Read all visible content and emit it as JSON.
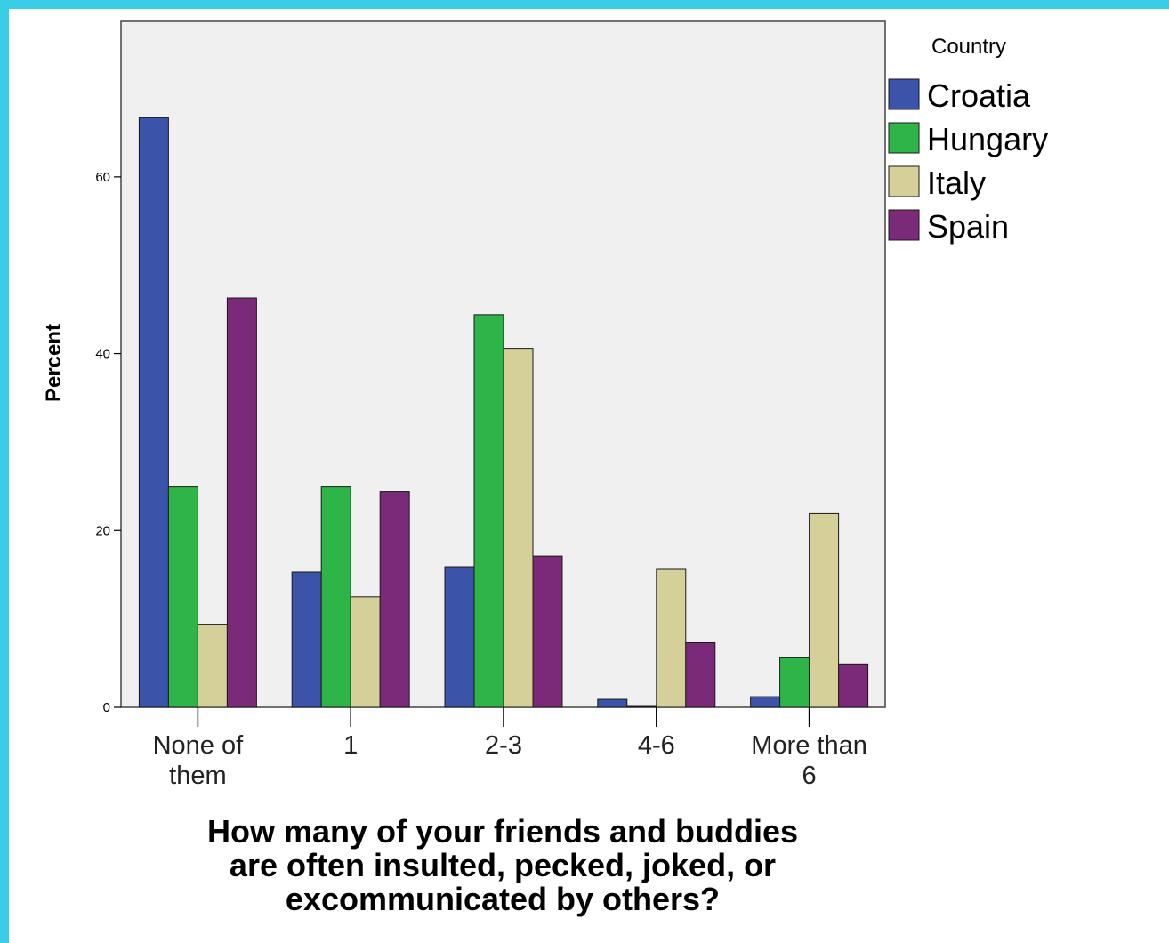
{
  "chart_data": {
    "type": "bar",
    "categories": [
      [
        "None of",
        "them"
      ],
      [
        "1"
      ],
      [
        "2-3"
      ],
      [
        "4-6"
      ],
      [
        "More than",
        "6"
      ]
    ],
    "series": [
      {
        "name": "Croatia",
        "color": "#3b53a8",
        "values": [
          66.7,
          15.3,
          15.9,
          0.9,
          1.2
        ]
      },
      {
        "name": "Hungary",
        "color": "#2eb547",
        "values": [
          25.0,
          25.0,
          44.4,
          0.1,
          5.6
        ]
      },
      {
        "name": "Italy",
        "color": "#d5d09a",
        "values": [
          9.4,
          12.5,
          40.6,
          15.6,
          21.9
        ]
      },
      {
        "name": "Spain",
        "color": "#7b2a79",
        "values": [
          46.3,
          24.4,
          17.1,
          7.3,
          4.9
        ]
      }
    ],
    "ylabel": "Percent",
    "xlabel": [
      "How many of your friends and buddies",
      "are often insulted, pecked, joked, or",
      "excommunicated by others?"
    ],
    "yticks": [
      0,
      20,
      40,
      60
    ],
    "ylim": [
      0,
      77.6
    ],
    "legend_title": "Country",
    "legend_position": "right",
    "plot_background": "#f0f0f0",
    "grid": false
  }
}
